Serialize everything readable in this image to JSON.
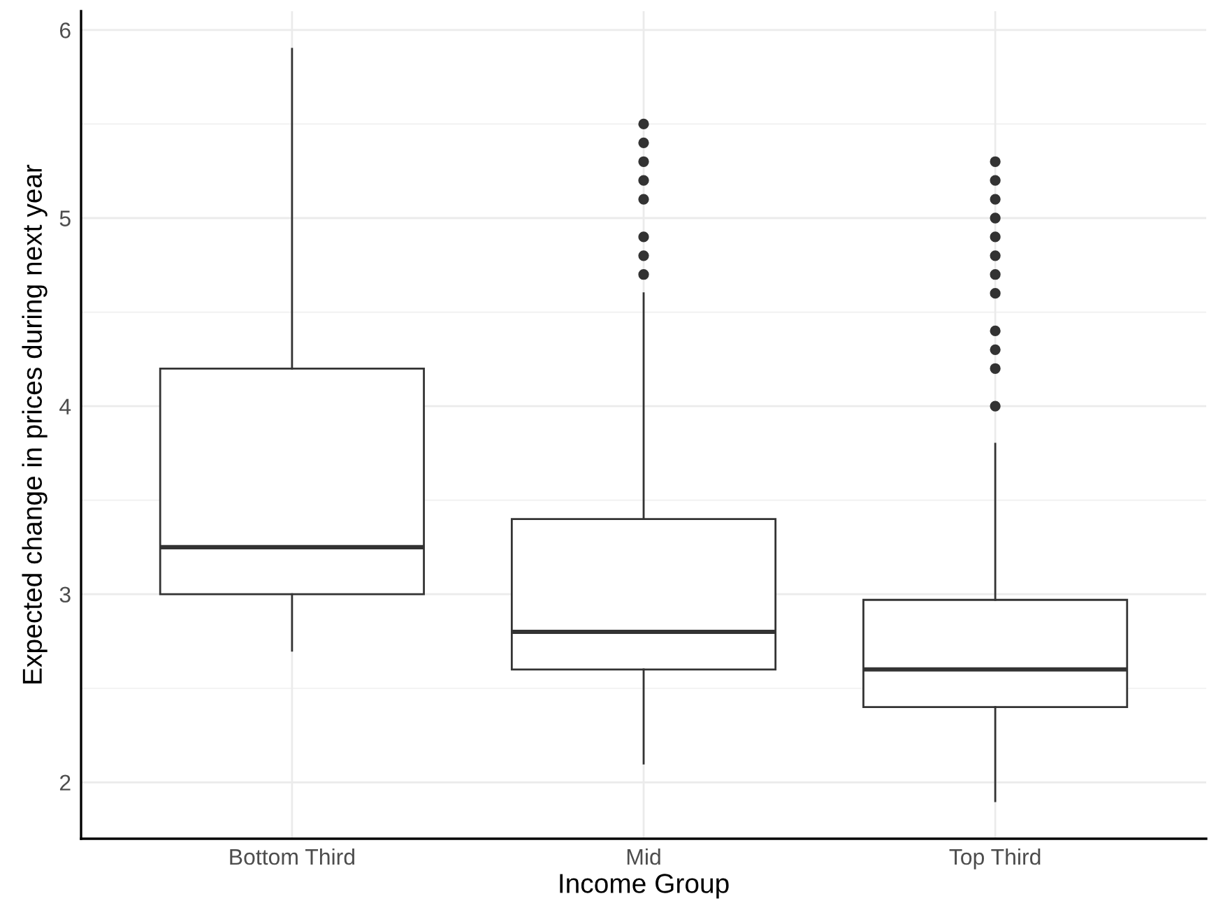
{
  "chart_data": {
    "type": "box",
    "xlabel": "Income Group",
    "ylabel": "Expected change in prices during next year",
    "categories": [
      "Bottom Third",
      "Mid",
      "Top Third"
    ],
    "boxes": [
      {
        "low": 2.7,
        "q1": 3.0,
        "median": 3.25,
        "q3": 4.2,
        "high": 5.9
      },
      {
        "low": 2.1,
        "q1": 2.6,
        "median": 2.8,
        "q3": 3.4,
        "high": 4.6,
        "outliers": [
          4.7,
          4.8,
          4.9,
          5.1,
          5.2,
          5.3,
          5.4,
          5.5
        ]
      },
      {
        "low": 1.9,
        "q1": 2.4,
        "median": 2.6,
        "q3": 2.97,
        "high": 3.8,
        "outliers": [
          4.0,
          4.2,
          4.3,
          4.4,
          4.6,
          4.7,
          4.8,
          4.9,
          5.0,
          5.1,
          5.2,
          5.3
        ]
      }
    ],
    "ylim": [
      1.7,
      6.1
    ],
    "yticks": [
      2,
      3,
      4,
      5,
      6
    ],
    "grid": true,
    "legend": false
  }
}
